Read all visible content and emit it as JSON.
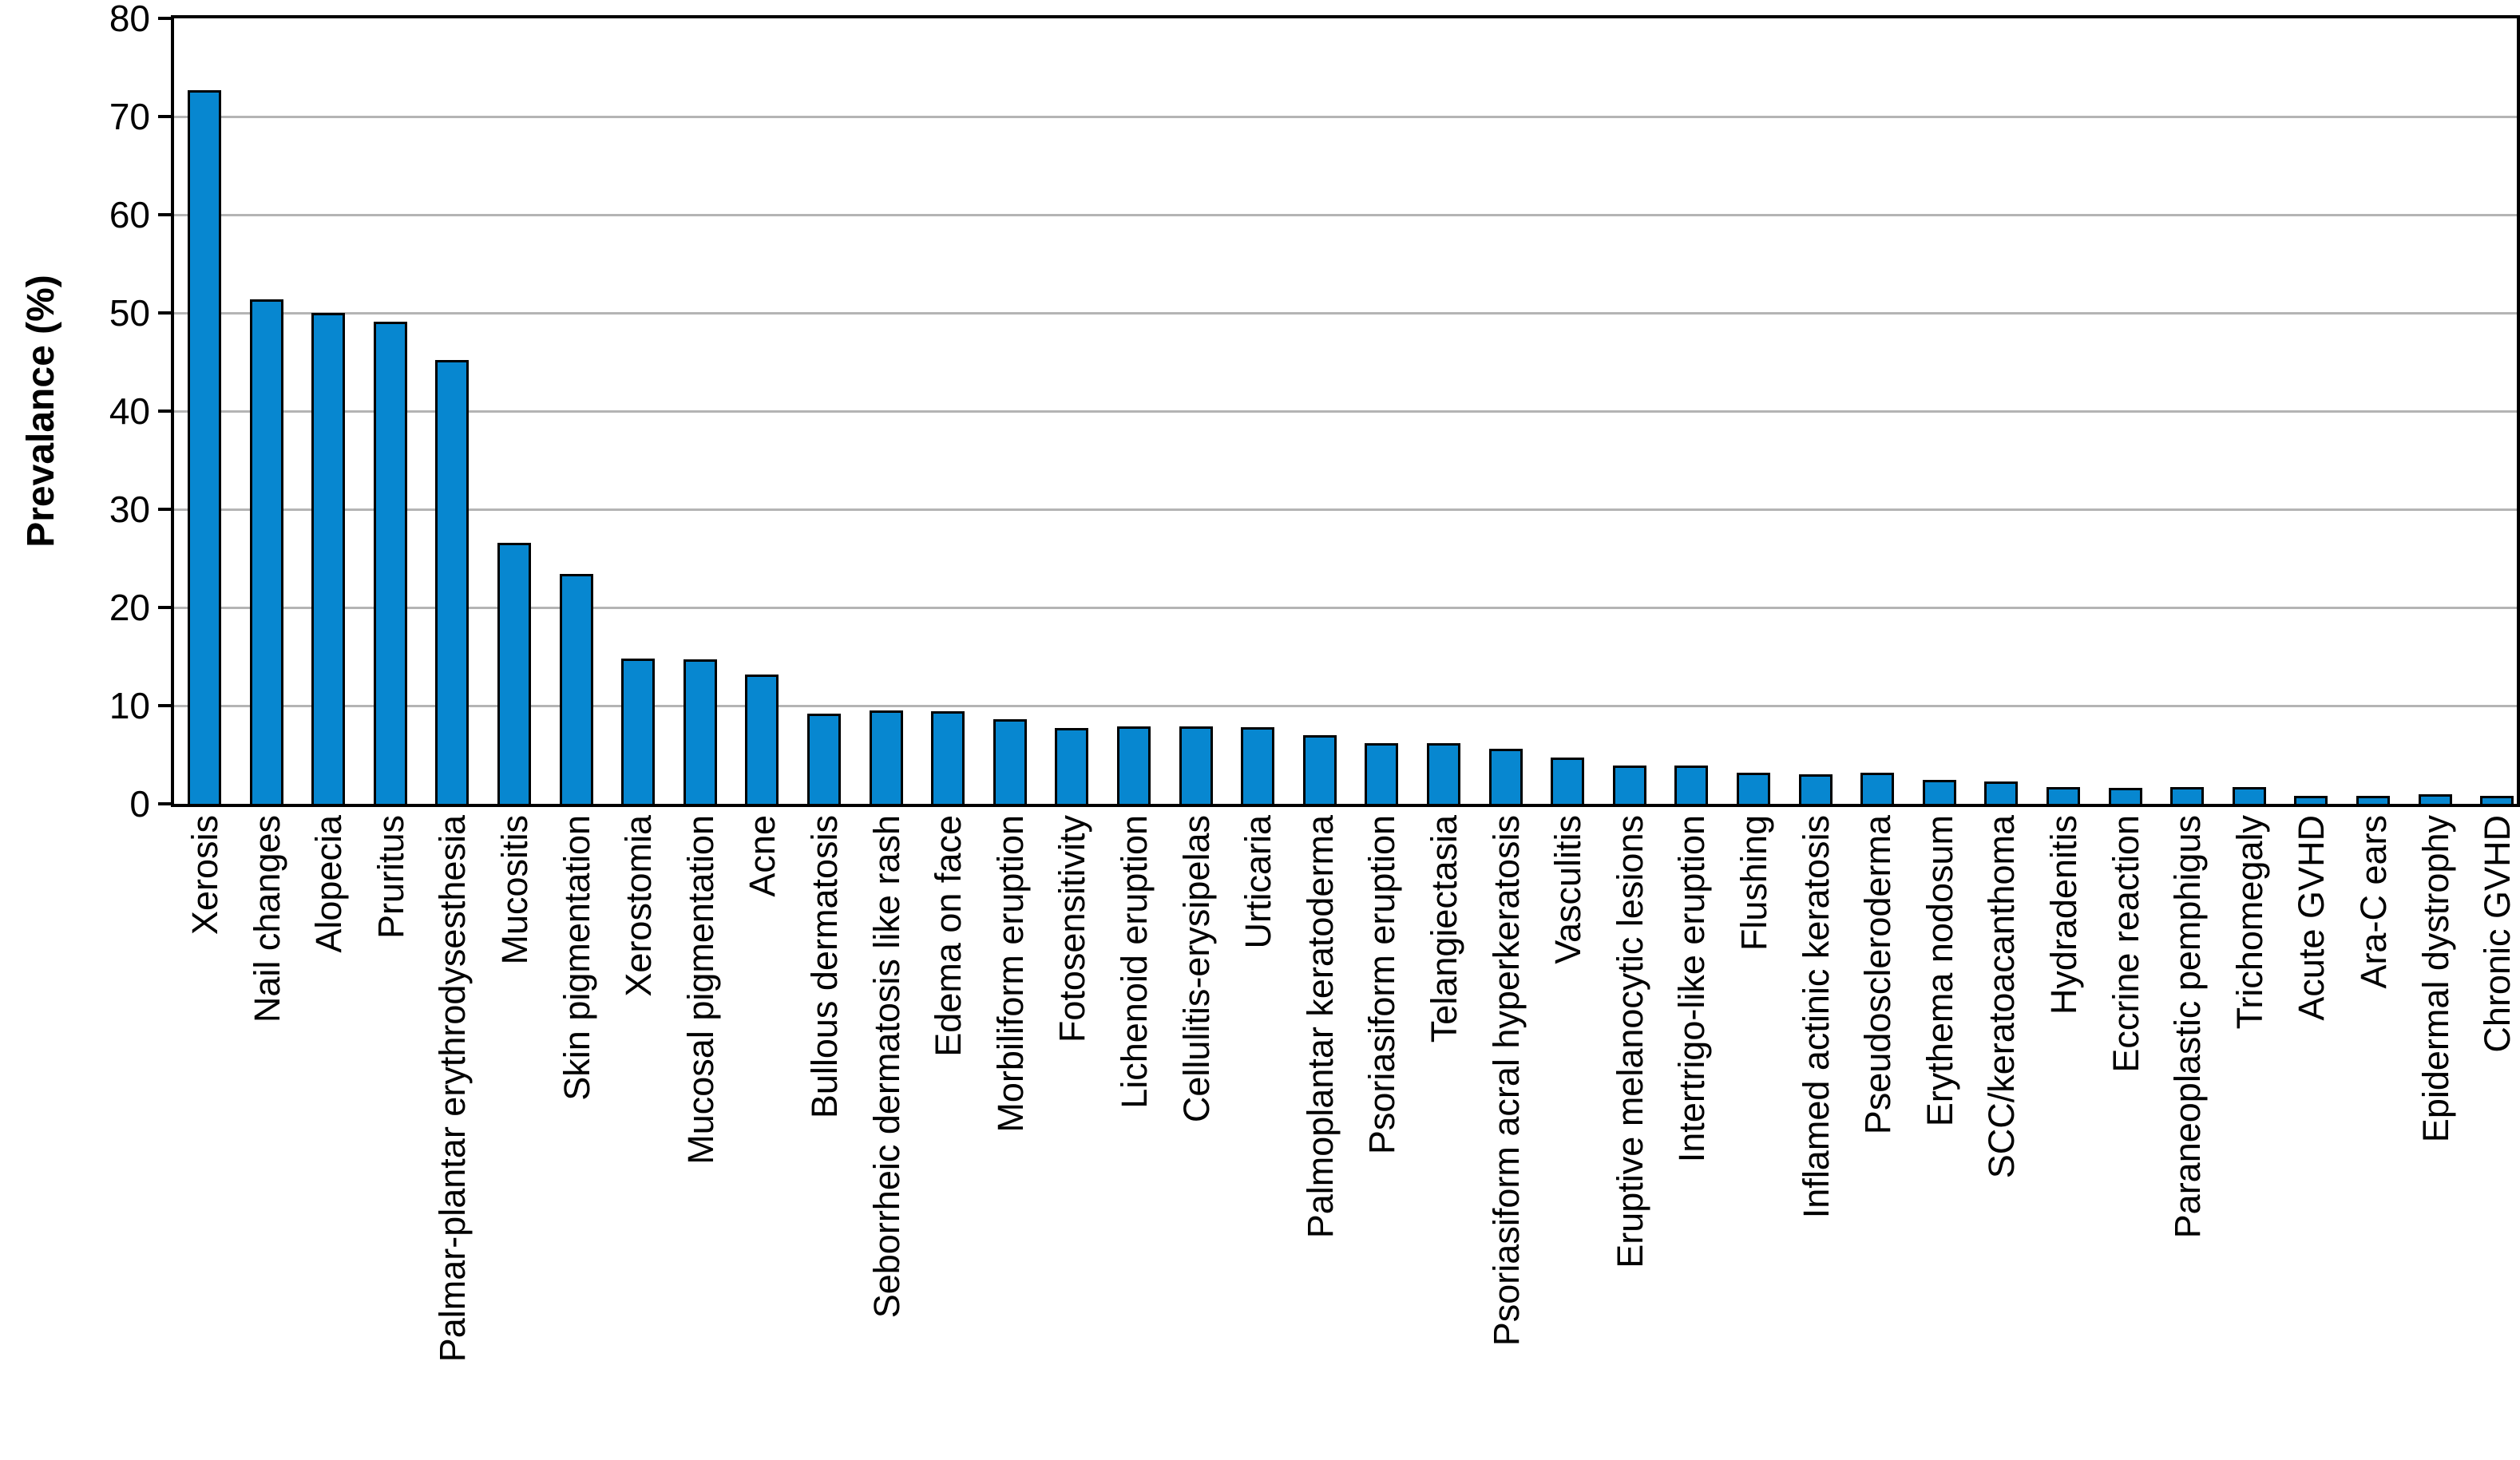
{
  "chart_data": {
    "type": "bar",
    "title": "",
    "xlabel": "",
    "ylabel": "Prevalance (%)",
    "ylim": [
      0,
      80
    ],
    "yticks": [
      0,
      10,
      20,
      30,
      40,
      50,
      60,
      70,
      80
    ],
    "grid": true,
    "gridlines_at": [
      10,
      20,
      30,
      40,
      50,
      60,
      70
    ],
    "legend_position": "none",
    "bar_fill_color": "#0787d0",
    "bar_border_color": "#000000",
    "gridline_color": "#b4b4b4",
    "axis_color": "#000000",
    "categories": [
      "Xerosis",
      "Nail changes",
      "Alopecia",
      "Pruritus",
      "Palmar-plantar erythrodysesthesia",
      "Mucositis",
      "Skin pigmentation",
      "Xerostomia",
      "Mucosal pigmentation",
      "Acne",
      "Bullous dermatosis",
      "Seborrheic dermatosis like rash",
      "Edema on face",
      "Morbiliform eruption",
      "Fotosensitivity",
      "Lichenoid eruption",
      "Cellulitis-erysipelas",
      "Urticaria",
      "Palmoplantar keratoderma",
      "Psoriasiform eruption",
      "Telangiectasia",
      "Psoriasiform acral hyperkeratosis",
      "Vasculitis",
      "Eruptive melanocytic lesions",
      "Intertrigo-like eruption",
      "Flushing",
      "Inflamed actinic keratosis",
      "Pseudoscleroderma",
      "Erythema nodosum",
      "SCC/keratoacanthoma",
      "Hydradenitis",
      "Eccrine reaction",
      "Paraneoplastic pemphigus",
      "Trichomegaly",
      "Acute GVHD",
      "Ara-C ears",
      "Epidermal dystrophy",
      "Chronic GVHD"
    ],
    "values": [
      72.7,
      51.4,
      50.0,
      49.1,
      45.2,
      26.6,
      23.4,
      14.8,
      14.7,
      13.2,
      9.2,
      9.5,
      9.4,
      8.6,
      7.7,
      7.9,
      7.9,
      7.8,
      7.0,
      6.2,
      6.2,
      5.6,
      4.7,
      3.9,
      3.9,
      3.2,
      3.0,
      3.2,
      2.4,
      2.3,
      1.7,
      1.6,
      1.7,
      1.7,
      0.8,
      0.8,
      1.0,
      0.8
    ]
  }
}
